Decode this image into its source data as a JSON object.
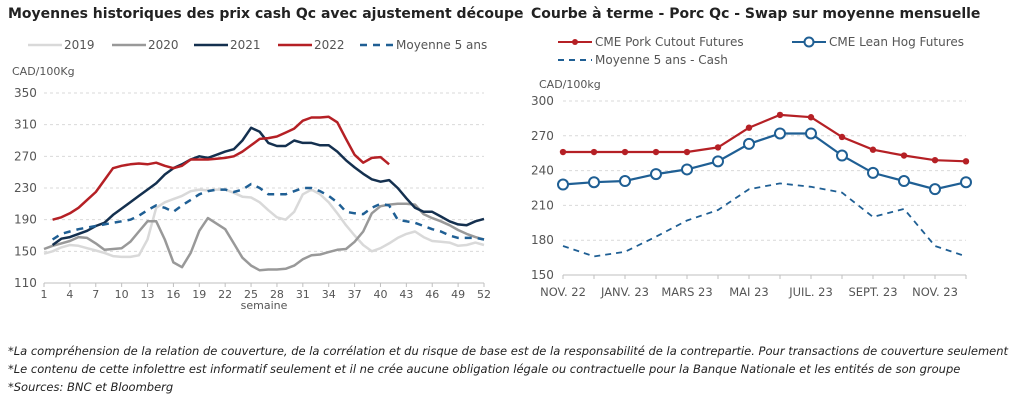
{
  "chart_data": [
    {
      "type": "line",
      "title": "Moyennes historiques des prix cash Qc avec ajustement découpe",
      "ylabel": "CAD/100Kg",
      "xlabel": "semaine",
      "ylim": [
        110,
        350
      ],
      "yticks": [
        110,
        150,
        190,
        230,
        270,
        310,
        350
      ],
      "xlim": [
        1,
        52
      ],
      "xticks": [
        1,
        4,
        7,
        10,
        13,
        16,
        19,
        22,
        25,
        28,
        31,
        34,
        37,
        40,
        43,
        46,
        49,
        52
      ],
      "grid": true,
      "legend": "top",
      "x": [
        1,
        2,
        3,
        4,
        5,
        6,
        7,
        8,
        9,
        10,
        11,
        12,
        13,
        14,
        15,
        16,
        17,
        18,
        19,
        20,
        21,
        22,
        23,
        24,
        25,
        26,
        27,
        28,
        29,
        30,
        31,
        32,
        33,
        34,
        35,
        36,
        37,
        38,
        39,
        40,
        41,
        42,
        43,
        44,
        45,
        46,
        47,
        48,
        49,
        50,
        51,
        52
      ],
      "series": [
        {
          "name": "2019",
          "color": "#d9d9d9",
          "dash": false,
          "values": [
            147,
            150,
            155,
            158,
            157,
            154,
            151,
            148,
            144,
            143,
            143,
            145,
            165,
            205,
            212,
            216,
            220,
            226,
            228,
            227,
            228,
            228,
            224,
            219,
            218,
            212,
            202,
            193,
            190,
            200,
            222,
            228,
            222,
            212,
            198,
            183,
            170,
            158,
            150,
            154,
            160,
            167,
            172,
            175,
            168,
            163,
            162,
            161,
            157,
            158,
            161,
            158
          ]
        },
        {
          "name": "2020",
          "color": "#999999",
          "dash": false,
          "values": [
            153,
            157,
            160,
            163,
            168,
            167,
            160,
            152,
            153,
            154,
            162,
            175,
            188,
            188,
            165,
            136,
            130,
            148,
            176,
            192,
            185,
            178,
            160,
            142,
            132,
            126,
            127,
            127,
            128,
            132,
            140,
            145,
            146,
            149,
            152,
            153,
            162,
            175,
            198,
            207,
            209,
            210,
            210,
            209,
            197,
            192,
            188,
            183,
            177,
            172,
            168,
            165
          ]
        },
        {
          "name": "2021",
          "color": "#14304f",
          "dash": false,
          "values": [
            null,
            158,
            166,
            168,
            172,
            176,
            182,
            186,
            196,
            204,
            212,
            220,
            228,
            236,
            247,
            255,
            260,
            266,
            270,
            268,
            272,
            276,
            279,
            290,
            306,
            301,
            287,
            283,
            283,
            290,
            287,
            287,
            284,
            284,
            276,
            265,
            256,
            248,
            241,
            238,
            240,
            230,
            217,
            205,
            200,
            200,
            194,
            188,
            184,
            183,
            188,
            191
          ]
        },
        {
          "name": "2022",
          "color": "#b52025",
          "dash": false,
          "values": [
            null,
            190,
            193,
            198,
            205,
            215,
            225,
            240,
            255,
            258,
            260,
            261,
            260,
            262,
            258,
            255,
            258,
            266,
            266,
            266,
            267,
            268,
            270,
            276,
            284,
            292,
            293,
            295,
            300,
            305,
            315,
            319,
            319,
            320,
            313,
            292,
            272,
            262,
            268,
            269,
            260,
            null,
            null,
            null,
            null,
            null,
            null,
            null,
            null,
            null,
            null,
            null
          ]
        },
        {
          "name": "Moyenne 5 ans",
          "color": "#1f5f94",
          "dash": true,
          "values": [
            null,
            165,
            172,
            175,
            178,
            180,
            182,
            184,
            186,
            188,
            190,
            195,
            202,
            208,
            205,
            200,
            208,
            215,
            222,
            226,
            228,
            228,
            225,
            228,
            235,
            230,
            222,
            222,
            222,
            226,
            230,
            230,
            226,
            220,
            212,
            200,
            198,
            197,
            205,
            210,
            208,
            190,
            188,
            186,
            182,
            178,
            175,
            170,
            167,
            167,
            167,
            165
          ]
        }
      ]
    },
    {
      "type": "line",
      "title": "Courbe à terme - Porc Qc - Swap sur moyenne mensuelle",
      "ylabel": "CAD/100kg",
      "ylim": [
        150,
        300
      ],
      "yticks": [
        150,
        180,
        210,
        240,
        270,
        300
      ],
      "grid": true,
      "legend": "top",
      "x_labels": [
        "NOV. 22",
        "",
        "JANV. 23",
        "",
        "MARS 23",
        "",
        "MAI 23",
        "",
        "JUIL. 23",
        "",
        "SEPT. 23",
        "",
        "NOV. 23",
        ""
      ],
      "series": [
        {
          "name": "CME Pork Cutout Futures",
          "color": "#b52025",
          "marker": "filled-circle",
          "dash": false,
          "values": [
            256,
            256,
            256,
            256,
            256,
            260,
            277,
            288,
            286,
            269,
            258,
            253,
            249,
            248
          ]
        },
        {
          "name": "CME Lean Hog Futures",
          "color": "#1f5f94",
          "marker": "open-circle",
          "dash": false,
          "values": [
            228,
            230,
            231,
            237,
            241,
            248,
            263,
            272,
            272,
            253,
            238,
            231,
            224,
            230
          ]
        },
        {
          "name": "Moyenne 5 ans - Cash",
          "color": "#1f5f94",
          "marker": "none",
          "dash": true,
          "values": [
            175,
            166,
            170,
            183,
            197,
            206,
            224,
            229,
            226,
            221,
            200,
            207,
            175,
            166
          ]
        }
      ]
    }
  ],
  "footnotes": [
    "*La compréhension de la relation de couverture, de la corrélation et du risque de base est de la responsabilité de la contrepartie. Pour transactions de couverture seulement",
    "*Le contenu de cette infolettre est informatif seulement et il ne crée aucune obligation légale ou contractuelle pour la Banque Nationale et les entités de son groupe",
    "*Sources: BNC et Bloomberg"
  ]
}
